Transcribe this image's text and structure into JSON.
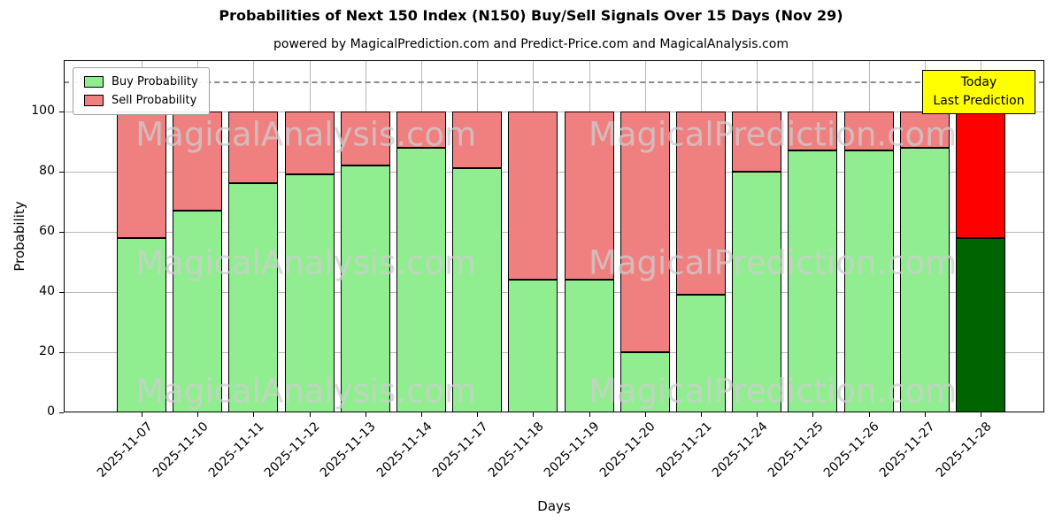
{
  "figure": {
    "title": "Probabilities of Next 150 Index (N150) Buy/Sell Signals Over 15 Days (Nov 29)",
    "subtitle": "powered by MagicalPrediction.com and Predict-Price.com and MagicalAnalysis.com"
  },
  "legend": {
    "items": [
      {
        "label": "Buy Probability",
        "color": "#90ee90"
      },
      {
        "label": "Sell Probability",
        "color": "#f08080"
      }
    ]
  },
  "annotation": {
    "lines": [
      "Today",
      "Last Prediction"
    ],
    "bg_color": "#ffff00"
  },
  "watermarks": [
    "MagicalAnalysis.com",
    "MagicalPrediction.com"
  ],
  "chart_data": {
    "type": "bar",
    "stacked": true,
    "title": "Probabilities of Next 150 Index (N150) Buy/Sell Signals Over 15 Days (Nov 29)",
    "xlabel": "Days",
    "ylabel": "Probability",
    "categories": [
      "2025-11-07",
      "2025-11-10",
      "2025-11-11",
      "2025-11-12",
      "2025-11-13",
      "2025-11-14",
      "2025-11-17",
      "2025-11-18",
      "2025-11-19",
      "2025-11-20",
      "2025-11-21",
      "2025-11-24",
      "2025-11-25",
      "2025-11-26",
      "2025-11-27",
      "2025-11-28"
    ],
    "series": [
      {
        "name": "Buy Probability",
        "color": "#90ee90",
        "values": [
          58,
          67,
          76,
          79,
          82,
          88,
          81,
          44,
          44,
          20,
          39,
          80,
          87,
          87,
          88,
          58
        ]
      },
      {
        "name": "Sell Probability",
        "color": "#f08080",
        "values": [
          42,
          33,
          24,
          21,
          18,
          12,
          19,
          56,
          56,
          80,
          61,
          20,
          13,
          13,
          12,
          42
        ]
      }
    ],
    "last_bar_highlight": {
      "buy_color": "#006400",
      "sell_color": "#ff0000"
    },
    "yticks": [
      0,
      20,
      40,
      60,
      80,
      100
    ],
    "ylim": [
      0,
      117
    ],
    "dashed_line_y": 110,
    "grid": true,
    "legend_position": "upper left"
  }
}
